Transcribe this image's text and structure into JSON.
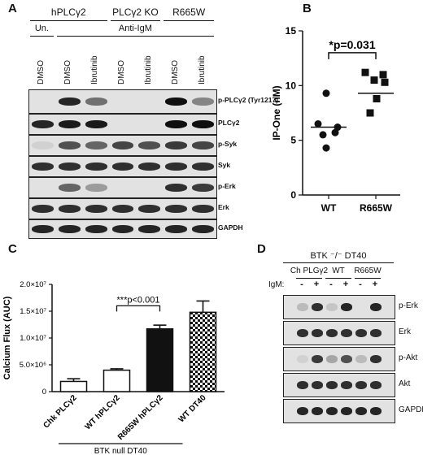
{
  "panelA": {
    "label": "A",
    "groups": [
      "hPLCγ2",
      "PLCγ2 KO",
      "R665W"
    ],
    "un_label": "Un.",
    "anti_label": "Anti-IgM",
    "lanes": [
      "DMSO",
      "DMSO",
      "Ibrutinib",
      "DMSO",
      "Ibrutinib",
      "DMSO",
      "Ibrutinib"
    ],
    "blots": [
      {
        "label": "p-PLCγ2 (Tyr1217)",
        "intensity": [
          0,
          0.9,
          0.55,
          0,
          0,
          1.0,
          0.45
        ]
      },
      {
        "label": "PLCγ2",
        "intensity": [
          0.9,
          0.95,
          0.95,
          0,
          0,
          1.0,
          1.0
        ]
      },
      {
        "label": "p-Syk",
        "intensity": [
          0.1,
          0.7,
          0.6,
          0.75,
          0.7,
          0.8,
          0.75
        ]
      },
      {
        "label": "Syk",
        "intensity": [
          0.85,
          0.85,
          0.85,
          0.85,
          0.85,
          0.85,
          0.85
        ]
      },
      {
        "label": "p-Erk",
        "intensity": [
          0,
          0.6,
          0.35,
          0,
          0,
          0.85,
          0.8
        ]
      },
      {
        "label": "Erk",
        "intensity": [
          0.85,
          0.85,
          0.85,
          0.85,
          0.85,
          0.85,
          0.85
        ]
      },
      {
        "label": "GAPDH",
        "intensity": [
          0.9,
          0.9,
          0.9,
          0.9,
          0.9,
          0.9,
          0.9
        ]
      }
    ]
  },
  "panelB": {
    "label": "B",
    "ylabel": "IP-One (nM)",
    "significance": "*p=0.031",
    "chart_data": {
      "type": "scatter",
      "categories": [
        "WT",
        "R665W"
      ],
      "series": [
        {
          "values": [
            9.3,
            6.5,
            6.2,
            5.5,
            5.7,
            4.3
          ]
        },
        {
          "values": [
            11.2,
            11.0,
            10.5,
            10.3,
            8.8,
            7.5
          ]
        }
      ],
      "means": [
        6.2,
        9.3
      ],
      "ylim": [
        0,
        15
      ],
      "yticks": [
        "0",
        "5",
        "10",
        "15"
      ]
    }
  },
  "panelC": {
    "label": "C",
    "ylabel": "Calcium Flux (AUC)",
    "significance": "***p<0.001",
    "group_label": "BTK null DT40",
    "chart_data": {
      "type": "bar",
      "categories": [
        "Chk PLCγ2",
        "WT hPLCγ2",
        "R665W hPLCγ2",
        "WT DT40"
      ],
      "values": [
        1900000,
        4000000,
        11700000,
        14800000
      ],
      "errors": [
        500000,
        250000,
        700000,
        2100000
      ],
      "ylim": [
        0,
        20000000
      ],
      "yticks": [
        "0",
        "5.0×10⁶",
        "1.0×10⁷",
        "1.5×10⁷",
        "2.0×10⁷"
      ]
    }
  },
  "panelD": {
    "label": "D",
    "title": "BTK ⁻/⁻ DT40",
    "groups": [
      "Ch PLGγ2",
      "WT",
      "R665W"
    ],
    "igm_label": "IgM:",
    "signs": [
      "-",
      "+",
      "-",
      "+",
      "-",
      "+"
    ],
    "blots": [
      {
        "label": "p-Erk",
        "intensity": [
          0.2,
          0.85,
          0.15,
          0.9,
          0,
          0.9
        ]
      },
      {
        "label": "Erk",
        "intensity": [
          0.85,
          0.85,
          0.85,
          0.85,
          0.85,
          0.85
        ]
      },
      {
        "label": "p-Akt",
        "intensity": [
          0.1,
          0.8,
          0.3,
          0.7,
          0.2,
          0.85
        ]
      },
      {
        "label": "Akt",
        "intensity": [
          0.85,
          0.85,
          0.85,
          0.85,
          0.85,
          0.85
        ]
      },
      {
        "label": "GAPDH",
        "intensity": [
          0.9,
          0.9,
          0.9,
          0.9,
          0.9,
          0.9
        ]
      }
    ]
  }
}
